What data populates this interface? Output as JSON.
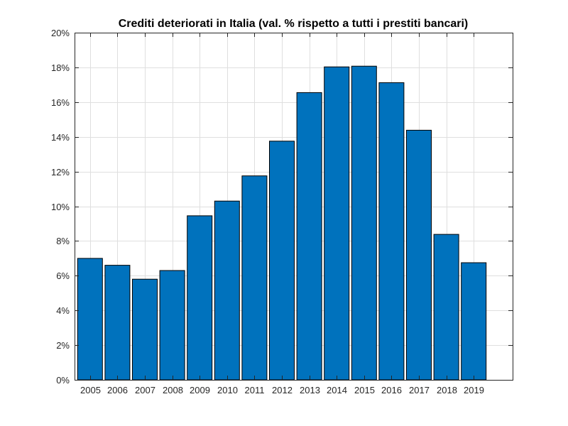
{
  "chart_data": {
    "type": "bar",
    "title": "Crediti deteriorati in Italia (val. % rispetto a tutti i prestiti bancari)",
    "xlabel": "",
    "ylabel": "",
    "categories": [
      "2005",
      "2006",
      "2007",
      "2008",
      "2009",
      "2010",
      "2011",
      "2012",
      "2013",
      "2014",
      "2015",
      "2016",
      "2017",
      "2018",
      "2019"
    ],
    "values": [
      7.0,
      6.6,
      5.8,
      6.3,
      9.45,
      10.3,
      11.75,
      13.75,
      16.55,
      18.03,
      18.07,
      17.12,
      14.38,
      8.38,
      6.75
    ],
    "ylim": [
      0,
      20
    ],
    "yticks": [
      0,
      2,
      4,
      6,
      8,
      10,
      12,
      14,
      16,
      18,
      20
    ],
    "ytick_labels": [
      "0%",
      "2%",
      "4%",
      "6%",
      "8%",
      "10%",
      "12%",
      "14%",
      "16%",
      "18%",
      "20%"
    ],
    "grid": true,
    "bar_color": "#0072BD"
  }
}
